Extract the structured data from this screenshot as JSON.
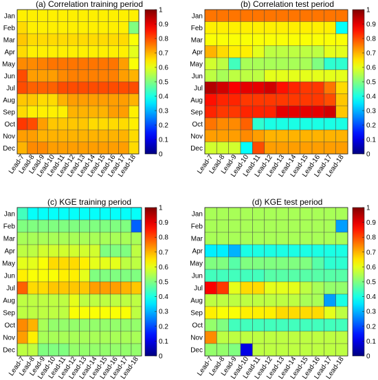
{
  "chart_data": [
    {
      "type": "heatmap",
      "title": "(a) Correlation training period",
      "x": [
        "Lead-7",
        "Lead-8",
        "Lead-9",
        "Lead-10",
        "Lead-11",
        "Lead-12",
        "Lead-13",
        "Lead-14",
        "Lead-15",
        "Lead-16",
        "Lead-17",
        "Lead-18"
      ],
      "y": [
        "Jan",
        "Feb",
        "Mar",
        "Apr",
        "May",
        "Jun",
        "Jul",
        "Aug",
        "Sep",
        "Oct",
        "Nov",
        "Dec"
      ],
      "values": [
        [
          0.64,
          0.64,
          0.64,
          0.64,
          0.64,
          0.64,
          0.64,
          0.64,
          0.64,
          0.64,
          0.64,
          0.64
        ],
        [
          0.66,
          0.64,
          0.64,
          0.64,
          0.64,
          0.64,
          0.64,
          0.64,
          0.64,
          0.64,
          0.64,
          0.5
        ],
        [
          0.68,
          0.66,
          0.66,
          0.66,
          0.66,
          0.66,
          0.66,
          0.66,
          0.66,
          0.66,
          0.66,
          0.62
        ],
        [
          0.66,
          0.64,
          0.64,
          0.64,
          0.64,
          0.64,
          0.64,
          0.64,
          0.64,
          0.64,
          0.64,
          0.6
        ],
        [
          0.74,
          0.74,
          0.75,
          0.76,
          0.76,
          0.76,
          0.76,
          0.76,
          0.76,
          0.76,
          0.72,
          0.62
        ],
        [
          0.8,
          0.72,
          0.72,
          0.72,
          0.74,
          0.75,
          0.75,
          0.75,
          0.75,
          0.75,
          0.72,
          0.7
        ],
        [
          0.8,
          0.78,
          0.78,
          0.78,
          0.8,
          0.8,
          0.8,
          0.8,
          0.8,
          0.8,
          0.8,
          0.8
        ],
        [
          0.68,
          0.68,
          0.66,
          0.66,
          0.7,
          0.72,
          0.72,
          0.72,
          0.72,
          0.72,
          0.72,
          0.7
        ],
        [
          0.66,
          0.64,
          0.64,
          0.64,
          0.64,
          0.7,
          0.7,
          0.7,
          0.7,
          0.72,
          0.72,
          0.64
        ],
        [
          0.82,
          0.8,
          0.72,
          0.68,
          0.68,
          0.68,
          0.68,
          0.66,
          0.66,
          0.66,
          0.66,
          0.64
        ],
        [
          0.72,
          0.72,
          0.7,
          0.7,
          0.7,
          0.7,
          0.7,
          0.7,
          0.7,
          0.7,
          0.7,
          0.66
        ],
        [
          0.7,
          0.74,
          0.74,
          0.72,
          0.72,
          0.72,
          0.72,
          0.72,
          0.72,
          0.72,
          0.72,
          0.66
        ]
      ],
      "colorbar": {
        "range": [
          0,
          1
        ],
        "ticks": [
          "0",
          "0.1",
          "0.2",
          "0.3",
          "0.4",
          "0.5",
          "0.6",
          "0.7",
          "0.8",
          "0.9",
          "1"
        ]
      },
      "colormap": "jet",
      "grid": true
    },
    {
      "type": "heatmap",
      "title": "(b) Correlation test period",
      "x": [
        "Lead-7",
        "Lead-8",
        "Lead-9",
        "Lead-10",
        "Lead-11",
        "Lead-12",
        "Lead-13",
        "Lead-14",
        "Lead-15",
        "Lead-16",
        "Lead-17",
        "Lead-18"
      ],
      "y": [
        "Jan",
        "Feb",
        "Mar",
        "Apr",
        "May",
        "Jun",
        "Jul",
        "Aug",
        "Sep",
        "Oct",
        "Nov",
        "Dec"
      ],
      "values": [
        [
          0.76,
          0.76,
          0.76,
          0.76,
          0.76,
          0.76,
          0.76,
          0.76,
          0.76,
          0.76,
          0.76,
          0.76
        ],
        [
          0.64,
          0.64,
          0.64,
          0.64,
          0.64,
          0.64,
          0.64,
          0.64,
          0.64,
          0.64,
          0.64,
          0.38
        ],
        [
          0.62,
          0.62,
          0.62,
          0.62,
          0.62,
          0.62,
          0.62,
          0.62,
          0.62,
          0.62,
          0.62,
          0.62
        ],
        [
          0.7,
          0.66,
          0.64,
          0.64,
          0.6,
          0.56,
          0.56,
          0.56,
          0.56,
          0.56,
          0.6,
          0.6
        ],
        [
          0.58,
          0.56,
          0.44,
          0.54,
          0.54,
          0.54,
          0.54,
          0.54,
          0.54,
          0.5,
          0.42,
          0.42
        ],
        [
          0.56,
          0.54,
          0.56,
          0.56,
          0.56,
          0.6,
          0.6,
          0.6,
          0.6,
          0.6,
          0.6,
          0.6
        ],
        [
          0.95,
          0.92,
          0.88,
          0.9,
          0.9,
          0.92,
          0.86,
          0.84,
          0.82,
          0.82,
          0.76,
          0.66
        ],
        [
          0.86,
          0.84,
          0.84,
          0.82,
          0.82,
          0.82,
          0.82,
          0.82,
          0.82,
          0.82,
          0.8,
          0.68
        ],
        [
          0.84,
          0.82,
          0.82,
          0.84,
          0.84,
          0.84,
          0.9,
          0.9,
          0.9,
          0.9,
          0.92,
          0.68
        ],
        [
          0.76,
          0.74,
          0.74,
          0.78,
          0.42,
          0.4,
          0.4,
          0.4,
          0.4,
          0.4,
          0.4,
          0.4
        ],
        [
          0.72,
          0.72,
          0.72,
          0.74,
          0.72,
          0.7,
          0.7,
          0.7,
          0.7,
          0.7,
          0.7,
          0.7
        ],
        [
          0.58,
          0.58,
          0.58,
          0.38,
          0.8,
          0.72,
          0.72,
          0.72,
          0.72,
          0.72,
          0.72,
          0.72
        ]
      ],
      "colorbar": {
        "range": [
          0,
          1
        ],
        "ticks": [
          "0",
          "0.1",
          "0.2",
          "0.3",
          "0.4",
          "0.5",
          "0.6",
          "0.7",
          "0.8",
          "0.9",
          "1"
        ]
      },
      "colormap": "jet",
      "grid": true
    },
    {
      "type": "heatmap",
      "title": "(c) KGE training period",
      "x": [
        "Lead-7",
        "Lead-8",
        "Lead-9",
        "Lead-10",
        "Lead-11",
        "Lead-12",
        "Lead-13",
        "Lead-14",
        "Lead-15",
        "Lead-16",
        "Lead-17",
        "Lead-18"
      ],
      "y": [
        "Jan",
        "Feb",
        "Mar",
        "Apr",
        "May",
        "Jun",
        "Jul",
        "Aug",
        "Sep",
        "Oct",
        "Nov",
        "Dec"
      ],
      "values": [
        [
          0.44,
          0.38,
          0.38,
          0.38,
          0.38,
          0.38,
          0.38,
          0.38,
          0.38,
          0.38,
          0.38,
          0.38
        ],
        [
          0.5,
          0.5,
          0.5,
          0.5,
          0.5,
          0.5,
          0.5,
          0.5,
          0.5,
          0.5,
          0.5,
          0.22
        ],
        [
          0.54,
          0.54,
          0.54,
          0.54,
          0.54,
          0.54,
          0.54,
          0.54,
          0.54,
          0.54,
          0.54,
          0.54
        ],
        [
          0.56,
          0.56,
          0.58,
          0.58,
          0.58,
          0.58,
          0.58,
          0.58,
          0.5,
          0.5,
          0.5,
          0.56
        ],
        [
          0.6,
          0.6,
          0.62,
          0.66,
          0.66,
          0.66,
          0.64,
          0.6,
          0.6,
          0.6,
          0.56,
          0.56
        ],
        [
          0.64,
          0.62,
          0.62,
          0.62,
          0.64,
          0.64,
          0.6,
          0.5,
          0.5,
          0.5,
          0.5,
          0.5
        ],
        [
          0.78,
          0.66,
          0.66,
          0.68,
          0.68,
          0.68,
          0.68,
          0.72,
          0.72,
          0.72,
          0.7,
          0.68
        ],
        [
          0.56,
          0.56,
          0.56,
          0.56,
          0.56,
          0.6,
          0.56,
          0.56,
          0.56,
          0.56,
          0.56,
          0.56
        ],
        [
          0.56,
          0.56,
          0.56,
          0.56,
          0.56,
          0.62,
          0.62,
          0.62,
          0.62,
          0.62,
          0.62,
          0.56
        ],
        [
          0.74,
          0.7,
          0.54,
          0.52,
          0.52,
          0.52,
          0.52,
          0.52,
          0.52,
          0.52,
          0.52,
          0.52
        ],
        [
          0.72,
          0.64,
          0.54,
          0.54,
          0.54,
          0.54,
          0.54,
          0.54,
          0.54,
          0.54,
          0.54,
          0.54
        ],
        [
          0.56,
          0.56,
          0.5,
          0.5,
          0.5,
          0.52,
          0.52,
          0.52,
          0.52,
          0.52,
          0.52,
          0.52
        ]
      ],
      "colorbar": {
        "range": [
          0,
          1
        ],
        "ticks": [
          "0",
          "0.1",
          "0.2",
          "0.3",
          "0.4",
          "0.5",
          "0.6",
          "0.7",
          "0.8",
          "0.9",
          "1"
        ]
      },
      "colormap": "jet",
      "grid": true
    },
    {
      "type": "heatmap",
      "title": "(d) KGE test period",
      "x": [
        "Lead-7",
        "Lead-8",
        "Lead-9",
        "Lead-10",
        "Lead-11",
        "Lead-12",
        "Lead-13",
        "Lead-14",
        "Lead-15",
        "Lead-16",
        "Lead-17",
        "Lead-18"
      ],
      "y": [
        "Jan",
        "Feb",
        "Mar",
        "Apr",
        "May",
        "Jun",
        "Jul",
        "Aug",
        "Sep",
        "Oct",
        "Nov",
        "Dec"
      ],
      "values": [
        [
          0.54,
          0.54,
          0.54,
          0.54,
          0.54,
          0.54,
          0.54,
          0.54,
          0.54,
          0.54,
          0.54,
          0.54
        ],
        [
          0.54,
          0.54,
          0.54,
          0.54,
          0.54,
          0.54,
          0.54,
          0.54,
          0.54,
          0.54,
          0.54,
          0.28
        ],
        [
          0.54,
          0.54,
          0.54,
          0.54,
          0.54,
          0.54,
          0.54,
          0.54,
          0.54,
          0.54,
          0.54,
          0.54
        ],
        [
          0.36,
          0.36,
          0.3,
          0.4,
          0.4,
          0.4,
          0.4,
          0.4,
          0.4,
          0.4,
          0.4,
          0.4
        ],
        [
          0.5,
          0.5,
          0.46,
          0.5,
          0.5,
          0.5,
          0.5,
          0.5,
          0.5,
          0.46,
          0.42,
          0.42
        ],
        [
          0.44,
          0.44,
          0.44,
          0.44,
          0.44,
          0.46,
          0.46,
          0.46,
          0.46,
          0.46,
          0.46,
          0.46
        ],
        [
          0.88,
          0.82,
          0.6,
          0.66,
          0.66,
          0.6,
          0.6,
          0.6,
          0.56,
          0.54,
          0.52,
          0.52
        ],
        [
          0.56,
          0.56,
          0.56,
          0.56,
          0.56,
          0.56,
          0.56,
          0.56,
          0.54,
          0.54,
          0.28,
          0.4
        ],
        [
          0.64,
          0.62,
          0.62,
          0.64,
          0.64,
          0.64,
          0.66,
          0.66,
          0.66,
          0.66,
          0.6,
          0.56
        ],
        [
          0.52,
          0.5,
          0.44,
          0.44,
          0.44,
          0.44,
          0.44,
          0.44,
          0.44,
          0.44,
          0.44,
          0.44
        ],
        [
          0.74,
          0.56,
          0.56,
          0.56,
          0.56,
          0.56,
          0.56,
          0.56,
          0.56,
          0.56,
          0.56,
          0.56
        ],
        [
          0.52,
          0.52,
          0.5,
          0.1,
          0.56,
          0.56,
          0.56,
          0.56,
          0.56,
          0.56,
          0.56,
          0.56
        ]
      ],
      "colorbar": {
        "range": [
          0,
          1
        ],
        "ticks": [
          "0",
          "0.1",
          "0.2",
          "0.3",
          "0.4",
          "0.5",
          "0.6",
          "0.7",
          "0.8",
          "0.9",
          "1"
        ]
      },
      "colormap": "jet",
      "grid": true
    }
  ]
}
